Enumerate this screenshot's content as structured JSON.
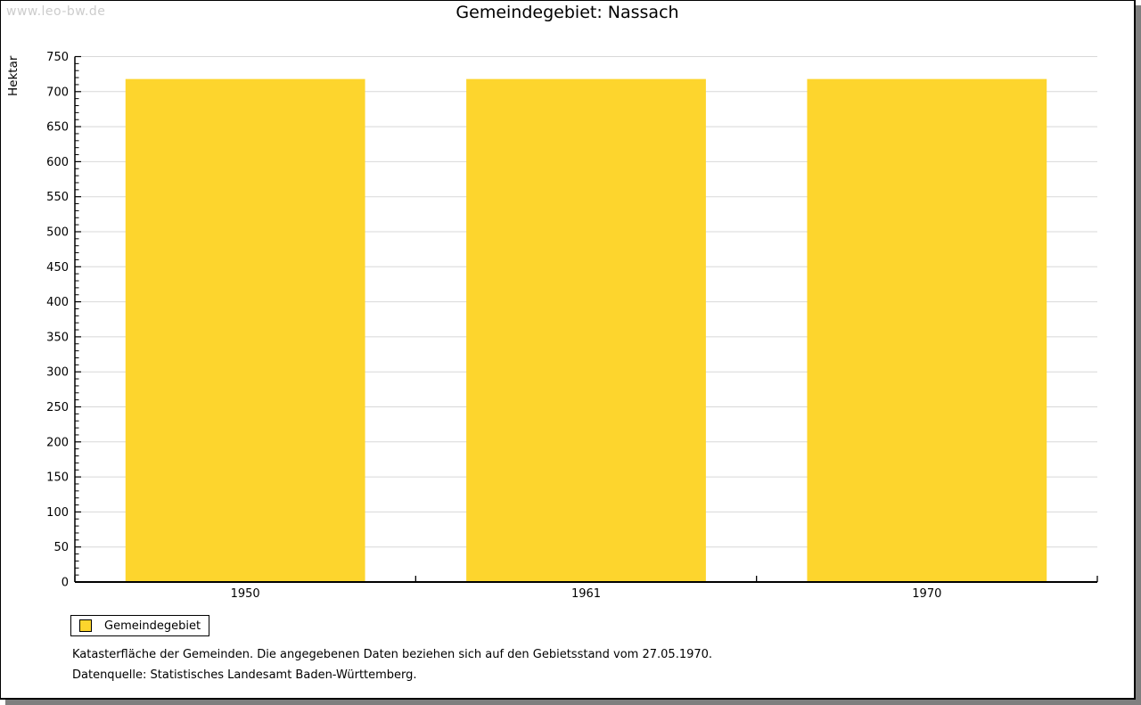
{
  "watermark": "www.leo-bw.de",
  "title": "Gemeindegebiet: Nassach",
  "chart_data": {
    "type": "bar",
    "title": "Gemeindegebiet: Nassach",
    "categories": [
      "1950",
      "1961",
      "1970"
    ],
    "series": [
      {
        "name": "Gemeindegebiet",
        "values": [
          718,
          718,
          718
        ]
      }
    ],
    "xlabel": "",
    "ylabel": "Hektar",
    "ylim": [
      0,
      750
    ],
    "y_ticks": [
      0,
      50,
      100,
      150,
      200,
      250,
      300,
      350,
      400,
      450,
      500,
      550,
      600,
      650,
      700,
      750
    ],
    "y_minor_step": 10,
    "grid": true,
    "legend_position": "bottom-left",
    "bar_color": "#fdd52d"
  },
  "legend": {
    "label": "Gemeindegebiet",
    "swatch_color": "#fdd52d"
  },
  "footnotes": [
    "Katasterfläche der Gemeinden. Die angegebenen Daten beziehen sich auf den Gebietsstand vom 27.05.1970.",
    "Datenquelle: Statistisches Landesamt Baden-Württemberg."
  ],
  "colors": {
    "bar": "#fdd52d",
    "gridline": "#d8d8d8",
    "axis": "#000000",
    "watermark": "#cccccc",
    "shadow": "#7f7f7f",
    "text": "#000000"
  }
}
